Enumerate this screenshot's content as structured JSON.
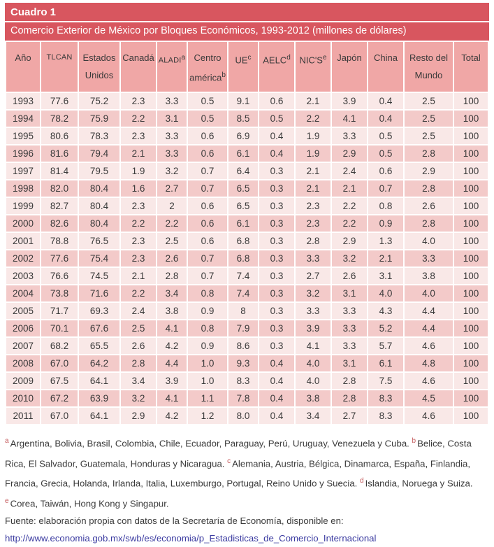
{
  "title": {
    "label": "Cuadro 1",
    "subtitle": "Comercio Exterior de México por Bloques Económicos, 1993-2012 (millones de dólares)"
  },
  "table": {
    "headers": [
      {
        "line1": "Año"
      },
      {
        "line1": "TLCAN"
      },
      {
        "line1": "Estados",
        "line2": "Unidos"
      },
      {
        "line1": "Canadá"
      },
      {
        "line1": "ALADI",
        "sup1": "a"
      },
      {
        "line1": "Centro",
        "line2": "américa",
        "sup2": "b"
      },
      {
        "line1": "UE",
        "sup1": "c"
      },
      {
        "line1": "AELC",
        "sup1": "d"
      },
      {
        "line1": "NIC'S",
        "sup1": "e"
      },
      {
        "line1": "Japón"
      },
      {
        "line1": "China"
      },
      {
        "line1": "Resto del",
        "line2": "Mundo"
      },
      {
        "line1": "Total"
      }
    ],
    "rows": [
      [
        "1993",
        "77.6",
        "75.2",
        "2.3",
        "3.3",
        "0.5",
        "9.1",
        "0.6",
        "2.1",
        "3.9",
        "0.4",
        "2.5",
        "100"
      ],
      [
        "1994",
        "78.2",
        "75.9",
        "2.2",
        "3.1",
        "0.5",
        "8.5",
        "0.5",
        "2.2",
        "4.1",
        "0.4",
        "2.5",
        "100"
      ],
      [
        "1995",
        "80.6",
        "78.3",
        "2.3",
        "3.3",
        "0.6",
        "6.9",
        "0.4",
        "1.9",
        "3.3",
        "0.5",
        "2.5",
        "100"
      ],
      [
        "1996",
        "81.6",
        "79.4",
        "2.1",
        "3.3",
        "0.6",
        "6.1",
        "0.4",
        "1.9",
        "2.9",
        "0.5",
        "2.8",
        "100"
      ],
      [
        "1997",
        "81.4",
        "79.5",
        "1.9",
        "3.2",
        "0.7",
        "6.4",
        "0.3",
        "2.1",
        "2.4",
        "0.6",
        "2.9",
        "100"
      ],
      [
        "1998",
        "82.0",
        "80.4",
        "1.6",
        "2.7",
        "0.7",
        "6.5",
        "0.3",
        "2.1",
        "2.1",
        "0.7",
        "2.8",
        "100"
      ],
      [
        "1999",
        "82.7",
        "80.4",
        "2.3",
        "2",
        "0.6",
        "6.5",
        "0.3",
        "2.3",
        "2.2",
        "0.8",
        "2.6",
        "100"
      ],
      [
        "2000",
        "82.6",
        "80.4",
        "2.2",
        "2.2",
        "0.6",
        "6.1",
        "0.3",
        "2.3",
        "2.2",
        "0.9",
        "2.8",
        "100"
      ],
      [
        "2001",
        "78.8",
        "76.5",
        "2.3",
        "2.5",
        "0.6",
        "6.8",
        "0.3",
        "2.8",
        "2.9",
        "1.3",
        "4.0",
        "100"
      ],
      [
        "2002",
        "77.6",
        "75.4",
        "2.3",
        "2.6",
        "0.7",
        "6.8",
        "0.3",
        "3.3",
        "3.2",
        "2.1",
        "3.3",
        "100"
      ],
      [
        "2003",
        "76.6",
        "74.5",
        "2.1",
        "2.8",
        "0.7",
        "7.4",
        "0.3",
        "2.7",
        "2.6",
        "3.1",
        "3.8",
        "100"
      ],
      [
        "2004",
        "73.8",
        "71.6",
        "2.2",
        "3.4",
        "0.8",
        "7.4",
        "0.3",
        "3.2",
        "3.1",
        "4.0",
        "4.0",
        "100"
      ],
      [
        "2005",
        "71.7",
        "69.3",
        "2.4",
        "3.8",
        "0.9",
        "8",
        "0.3",
        "3.3",
        "3.3",
        "4.3",
        "4.4",
        "100"
      ],
      [
        "2006",
        "70.1",
        "67.6",
        "2.5",
        "4.1",
        "0.8",
        "7.9",
        "0.3",
        "3.9",
        "3.3",
        "5.2",
        "4.4",
        "100"
      ],
      [
        "2007",
        "68.2",
        "65.5",
        "2.6",
        "4.2",
        "0.9",
        "8.6",
        "0.3",
        "4.1",
        "3.3",
        "5.7",
        "4.6",
        "100"
      ],
      [
        "2008",
        "67.0",
        "64.2",
        "2.8",
        "4.4",
        "1.0",
        "9.3",
        "0.4",
        "4.0",
        "3.1",
        "6.1",
        "4.8",
        "100"
      ],
      [
        "2009",
        "67.5",
        "64.1",
        "3.4",
        "3.9",
        "1.0",
        "8.3",
        "0.4",
        "4.0",
        "2.8",
        "7.5",
        "4.6",
        "100"
      ],
      [
        "2010",
        "67.2",
        "63.9",
        "3.2",
        "4.1",
        "1.1",
        "7.8",
        "0.4",
        "3.8",
        "2.8",
        "8.3",
        "4.5",
        "100"
      ],
      [
        "2011",
        "67.0",
        "64.1",
        "2.9",
        "4.2",
        "1.2",
        "8.0",
        "0.4",
        "3.4",
        "2.7",
        "8.3",
        "4.6",
        "100"
      ]
    ]
  },
  "footnotes": {
    "items": [
      {
        "marker": "a",
        "text": "Argentina, Bolivia, Brasil, Colombia, Chile, Ecuador, Paraguay, Perú, Uruguay, Venezuela y Cuba."
      },
      {
        "marker": "b",
        "text": "Belice, Costa Rica, El Salvador, Guatemala, Honduras y Nicaragua."
      },
      {
        "marker": "c",
        "text": "Alemania, Austria, Bélgica, Dinamarca, España, Finlandia, Francia, Grecia, Holanda, Irlanda, Italia, Luxemburgo, Portugal, Reino Unido y Suecia."
      },
      {
        "marker": "d",
        "text": "Islandia, Noruega y Suiza."
      },
      {
        "marker": "e",
        "text": "Corea, Taiwán, Hong Kong y Singapur."
      }
    ],
    "source": "Fuente: elaboración propia con datos de la Secretaría de Economía, disponible en:",
    "url": "http://www.economia.gob.mx/swb/es/economia/p_Estadisticas_de_Comercio_Internacional"
  },
  "colors": {
    "title_red": "#d8565f",
    "header_pink": "#f0a7a6",
    "row_light": "#f9e8e7",
    "row_dark": "#f3cac9",
    "footnote_marker": "#c4585a",
    "link": "#3a3aa0"
  }
}
